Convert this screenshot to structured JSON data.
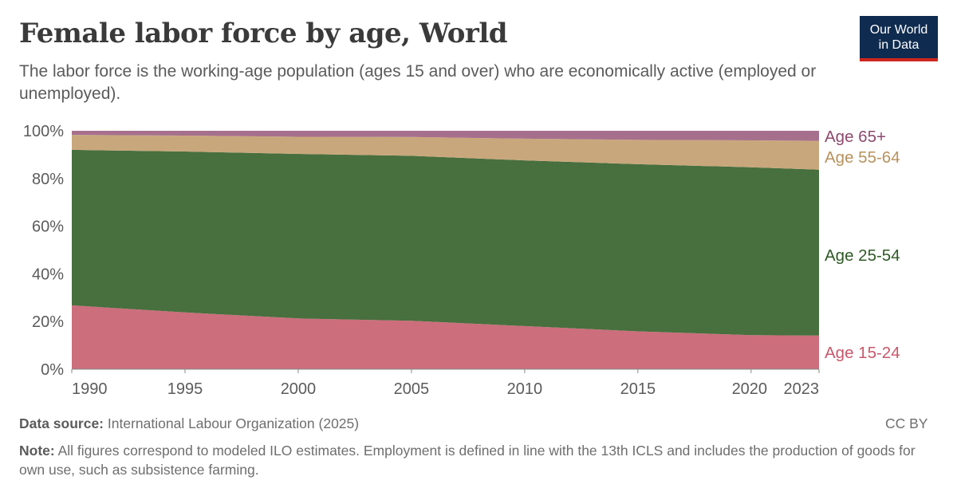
{
  "header": {
    "title": "Female labor force by age, World",
    "subtitle": "The labor force is the working-age population (ages 15 and over) who are economically active (employed or unemployed).",
    "logo_line1": "Our World",
    "logo_line2": "in Data"
  },
  "footer": {
    "source_label": "Data source:",
    "source_text": "International Labour Organization (2025)",
    "license": "CC BY",
    "note_label": "Note:",
    "note_text": "All figures correspond to modeled ILO estimates. Employment is defined in line with the 13th ICLS and includes the production of goods for own use, such as subsistence farming."
  },
  "chart_data": {
    "type": "area",
    "stacked": true,
    "relative": true,
    "x": [
      1990,
      1995,
      2000,
      2005,
      2010,
      2015,
      2020,
      2023
    ],
    "xticks": [
      "1990",
      "1995",
      "2000",
      "2005",
      "2010",
      "2015",
      "2020",
      "2023"
    ],
    "yticks": [
      "0%",
      "20%",
      "40%",
      "60%",
      "80%",
      "100%"
    ],
    "ylim": [
      0,
      100
    ],
    "grid": true,
    "legend_placement": "right",
    "series": [
      {
        "name": "Age 15-24",
        "color": "#cc6e7c",
        "label_color": "#c8586b",
        "values": [
          26.8,
          23.8,
          21.3,
          20.3,
          18.1,
          15.9,
          14.3,
          14.1
        ]
      },
      {
        "name": "Age 25-54",
        "color": "#486f3e",
        "label_color": "#2f5a26",
        "values": [
          65.2,
          67.5,
          69.0,
          69.2,
          69.5,
          70.1,
          70.4,
          69.6
        ]
      },
      {
        "name": "Age 55-64",
        "color": "#c9a77c",
        "label_color": "#b8925e",
        "values": [
          6.3,
          6.7,
          7.2,
          7.9,
          9.1,
          10.2,
          11.3,
          12.1
        ]
      },
      {
        "name": "Age 65+",
        "color": "#a6708d",
        "label_color": "#8c4a6e",
        "values": [
          1.7,
          2.0,
          2.5,
          2.6,
          3.3,
          3.8,
          4.0,
          4.2
        ]
      }
    ]
  }
}
